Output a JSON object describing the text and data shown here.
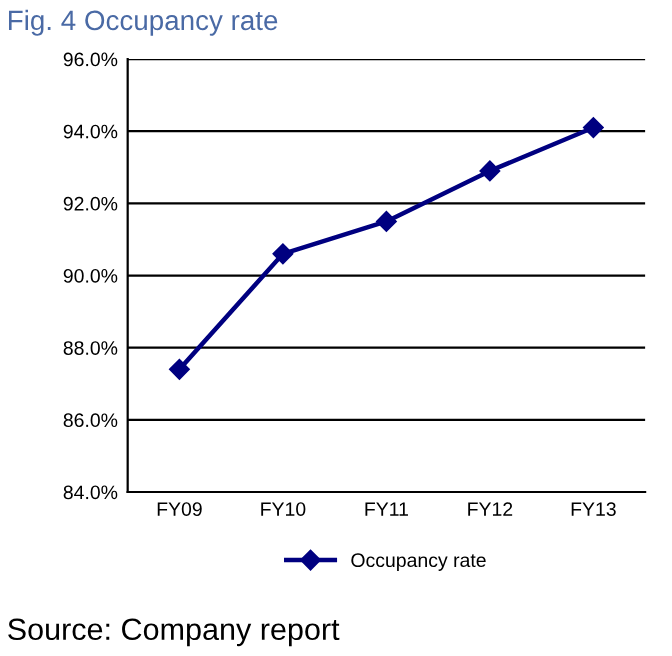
{
  "chart_data": {
    "type": "line",
    "title": "Fig. 4 Occupancy rate",
    "categories": [
      "FY09",
      "FY10",
      "FY11",
      "FY12",
      "FY13"
    ],
    "series": [
      {
        "name": "Occupancy rate",
        "color": "#000080",
        "values": [
          87.4,
          90.6,
          91.5,
          92.9,
          94.1
        ]
      }
    ],
    "ylim": [
      84,
      96
    ],
    "yticks": [
      {
        "value": 84,
        "label": "84.0%"
      },
      {
        "value": 86,
        "label": "86.0%"
      },
      {
        "value": 88,
        "label": "88.0%"
      },
      {
        "value": 90,
        "label": "90.0%"
      },
      {
        "value": 92,
        "label": "92.0%"
      },
      {
        "value": 94,
        "label": "94.0%"
      },
      {
        "value": 96,
        "label": "96.0%"
      }
    ],
    "grid": "y",
    "legend": "bottom",
    "marker": "diamond",
    "line_style": "solid",
    "annotations": [
      "Source: Company report"
    ]
  }
}
